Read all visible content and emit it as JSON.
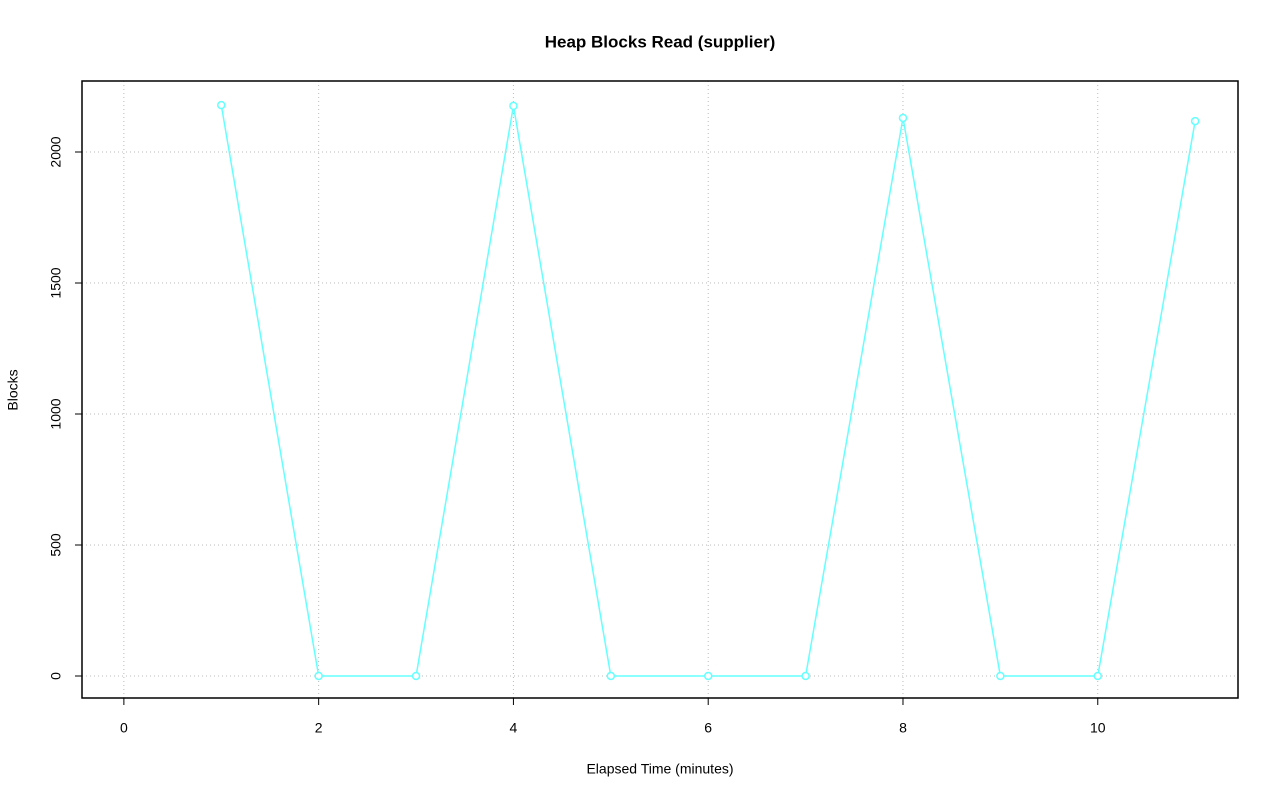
{
  "chart_data": {
    "type": "line",
    "title": "Heap Blocks Read (supplier)",
    "x_label": "Elapsed Time (minutes)",
    "y_label": "Blocks",
    "x": [
      1,
      2,
      3,
      4,
      5,
      6,
      7,
      8,
      9,
      10,
      11
    ],
    "series": [
      {
        "color": "#66ffff",
        "values": [
          2179,
          0,
          0,
          2176,
          0,
          0,
          0,
          2130,
          0,
          0,
          2118
        ]
      }
    ],
    "xlim": [
      -0.43,
      11.44
    ],
    "xticks": [
      0,
      2,
      4,
      6,
      8,
      10
    ],
    "ylim": [
      -84,
      2271
    ],
    "yticks": [
      0,
      500,
      1000,
      1500,
      2000
    ],
    "grid": true
  }
}
